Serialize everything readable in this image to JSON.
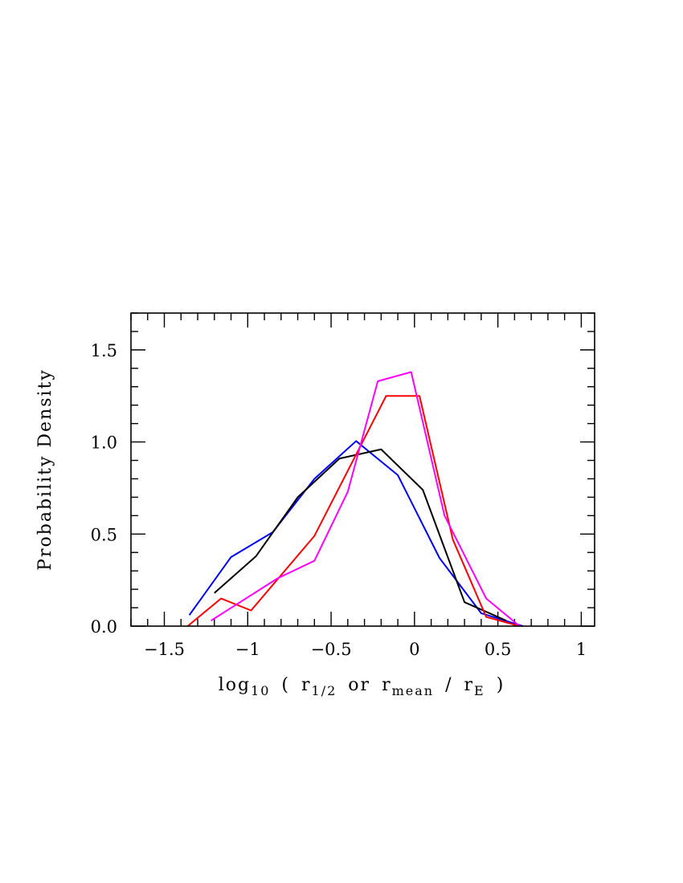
{
  "chart_data": {
    "type": "line",
    "title": "",
    "ylabel": "Probability Density",
    "xlabel": {
      "prefix": "log",
      "prefix_sub": "10",
      "open": "(",
      "r1": "r",
      "r1_sub": "1/2",
      "or_word": "or",
      "r2": "r",
      "r2_sub": "mean",
      "slash": "/",
      "r3": "r",
      "r3_sub": "E",
      "close": ")"
    },
    "xlim": [
      -1.7,
      1.08
    ],
    "ylim": [
      0,
      1.7
    ],
    "xticks": [
      {
        "value": -1.5,
        "label": "−1.5"
      },
      {
        "value": -1,
        "label": "−1"
      },
      {
        "value": -0.5,
        "label": "−0.5"
      },
      {
        "value": 0,
        "label": "0"
      },
      {
        "value": 0.5,
        "label": "0.5"
      },
      {
        "value": 1,
        "label": "1"
      }
    ],
    "yticks": [
      {
        "value": 0,
        "label": "0.0"
      },
      {
        "value": 0.5,
        "label": "0.5"
      },
      {
        "value": 1,
        "label": "1.0"
      },
      {
        "value": 1.5,
        "label": "1.5"
      }
    ],
    "x_minor_step": 0.1,
    "y_minor_step": 0.1,
    "grid": false,
    "series": [
      {
        "name": "blue",
        "color": "#0000ff",
        "x": [
          -1.35,
          -1.1,
          -0.85,
          -0.6,
          -0.35,
          -0.1,
          0.15,
          0.4,
          0.65
        ],
        "y": [
          0.06,
          0.375,
          0.51,
          0.8,
          1.005,
          0.82,
          0.37,
          0.07,
          0.0
        ]
      },
      {
        "name": "black",
        "color": "#000000",
        "x": [
          -1.2,
          -0.95,
          -0.7,
          -0.45,
          -0.2,
          0.05,
          0.3,
          0.55
        ],
        "y": [
          0.18,
          0.38,
          0.7,
          0.91,
          0.96,
          0.74,
          0.13,
          0.03
        ]
      },
      {
        "name": "red",
        "color": "#ff0000",
        "x": [
          -1.36,
          -1.16,
          -0.98,
          -0.6,
          -0.17,
          0.03,
          0.23,
          0.43,
          0.63
        ],
        "y": [
          0.0,
          0.15,
          0.085,
          0.49,
          1.25,
          1.25,
          0.47,
          0.05,
          0.0
        ]
      },
      {
        "name": "magenta",
        "color": "#ff00ff",
        "x": [
          -1.22,
          -0.82,
          -0.6,
          -0.4,
          -0.22,
          -0.02,
          0.18,
          0.43,
          0.63
        ],
        "y": [
          0.03,
          0.26,
          0.355,
          0.73,
          1.33,
          1.38,
          0.6,
          0.15,
          0.0
        ]
      }
    ]
  }
}
